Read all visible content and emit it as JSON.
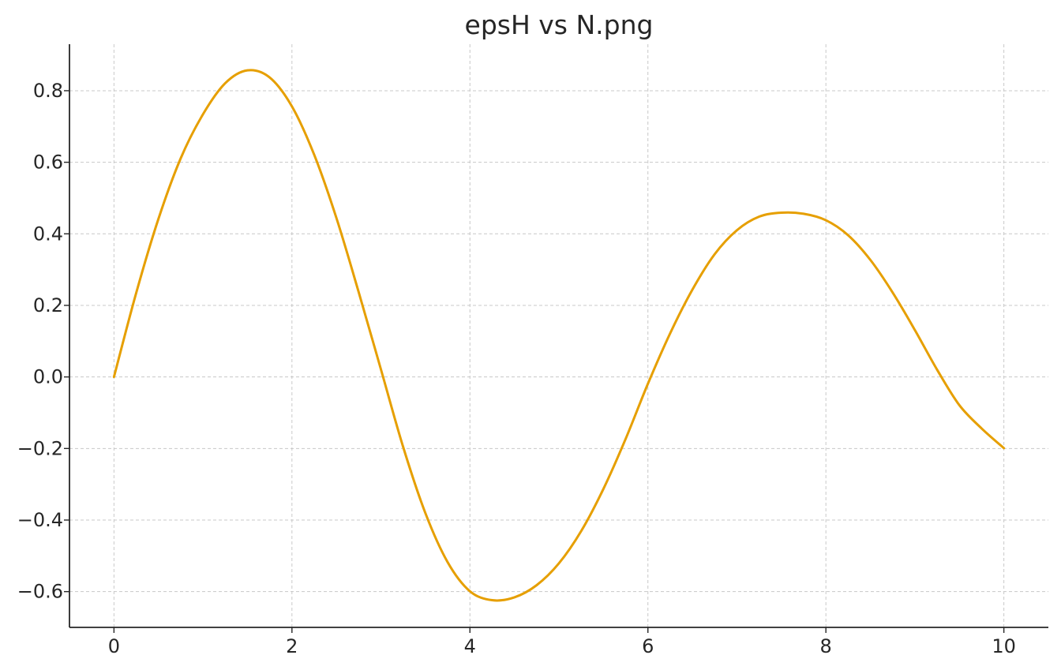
{
  "chart_data": {
    "type": "line",
    "title": "epsH vs N.png",
    "xlabel": "",
    "ylabel": "",
    "xlim": [
      -0.5,
      10.5
    ],
    "ylim": [
      -0.7,
      0.93
    ],
    "grid": true,
    "x_ticks": [
      {
        "value": 0,
        "label": "0"
      },
      {
        "value": 2,
        "label": "2"
      },
      {
        "value": 4,
        "label": "4"
      },
      {
        "value": 6,
        "label": "6"
      },
      {
        "value": 8,
        "label": "8"
      },
      {
        "value": 10,
        "label": "10"
      }
    ],
    "y_ticks": [
      {
        "value": -0.6,
        "label": "−0.6"
      },
      {
        "value": -0.4,
        "label": "−0.4"
      },
      {
        "value": -0.2,
        "label": "−0.2"
      },
      {
        "value": 0.0,
        "label": "0.0"
      },
      {
        "value": 0.2,
        "label": "0.2"
      },
      {
        "value": 0.4,
        "label": "0.4"
      },
      {
        "value": 0.6,
        "label": "0.6"
      },
      {
        "value": 0.8,
        "label": "0.8"
      }
    ],
    "series": [
      {
        "color": "#E69F00",
        "x": [
          0.0,
          0.25,
          0.5,
          0.75,
          1.0,
          1.25,
          1.5,
          1.75,
          2.0,
          2.25,
          2.5,
          2.75,
          3.0,
          3.25,
          3.5,
          3.75,
          4.0,
          4.25,
          4.5,
          4.75,
          5.0,
          5.25,
          5.5,
          5.75,
          6.0,
          6.25,
          6.5,
          6.75,
          7.0,
          7.25,
          7.5,
          7.75,
          8.0,
          8.25,
          8.5,
          8.75,
          9.0,
          9.25,
          9.5,
          9.75,
          10.0
        ],
        "y": [
          0.0,
          0.235,
          0.442,
          0.611,
          0.734,
          0.821,
          0.857,
          0.837,
          0.756,
          0.621,
          0.444,
          0.237,
          0.021,
          -0.196,
          -0.381,
          -0.518,
          -0.599,
          -0.624,
          -0.616,
          -0.582,
          -0.521,
          -0.431,
          -0.313,
          -0.173,
          -0.019,
          0.122,
          0.244,
          0.343,
          0.41,
          0.448,
          0.459,
          0.456,
          0.438,
          0.396,
          0.327,
          0.236,
          0.131,
          0.02,
          -0.079,
          -0.144,
          -0.199
        ]
      }
    ]
  }
}
